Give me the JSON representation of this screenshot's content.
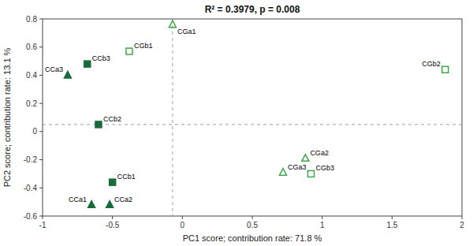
{
  "chart_data": {
    "type": "scatter",
    "title": "R² = 0.3979, p = 0.008",
    "x_label": "PC1 score; contribution rate: 71.8 %",
    "y_label": "PC2 score; contribution rate: 13.1 %",
    "xlim": [
      -1.0,
      2.0
    ],
    "ylim": [
      -0.6,
      0.8
    ],
    "xticks": [
      -1,
      -0.5,
      0,
      0.5,
      1,
      1.5,
      2
    ],
    "yticks": [
      -0.6,
      -0.4,
      -0.2,
      0,
      0.2,
      0.4,
      0.6,
      0.8
    ],
    "grid": false,
    "vline": -0.07,
    "hline": 0.05,
    "labels": [
      "CGa1",
      "CGa2",
      "CGa3",
      "CGb1",
      "CGb2",
      "CGb3",
      "CCa1",
      "CCa2",
      "CCa3",
      "CCb1",
      "CCb2",
      "CCb3"
    ],
    "x": [
      -0.07,
      0.88,
      0.72,
      -0.38,
      1.88,
      0.92,
      -0.65,
      -0.52,
      -0.82,
      -0.5,
      -0.6,
      -0.68
    ],
    "values": [
      0.76,
      -0.19,
      -0.29,
      0.57,
      0.44,
      -0.3,
      -0.52,
      -0.52,
      0.4,
      -0.36,
      0.05,
      0.48
    ],
    "markers": [
      "triangle-open",
      "triangle-open",
      "triangle-open",
      "square-open",
      "square-open",
      "square-open",
      "triangle-filled",
      "triangle-filled",
      "triangle-filled",
      "square-filled",
      "square-filled",
      "square-filled"
    ],
    "colors": [
      "#3da84a",
      "#3da84a",
      "#3da84a",
      "#3da84a",
      "#3da84a",
      "#3da84a",
      "#1a6b3c",
      "#1a6b3c",
      "#1a6b3c",
      "#1a6b3c",
      "#1a6b3c",
      "#1a6b3c"
    ]
  }
}
